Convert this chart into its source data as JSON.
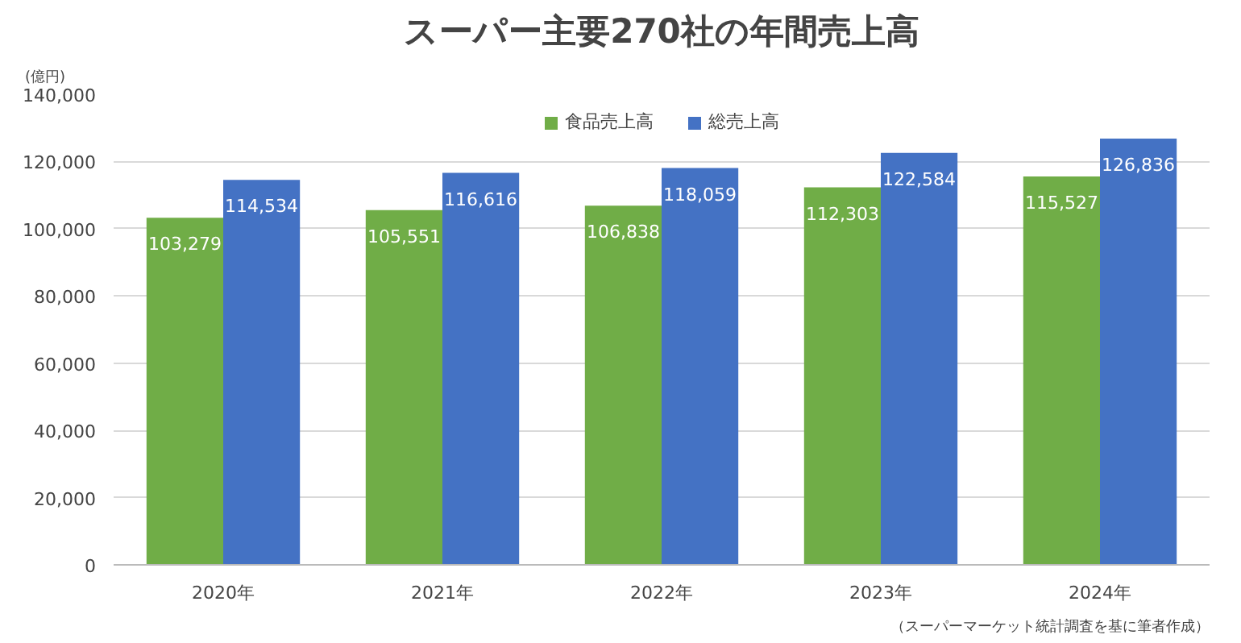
{
  "chart_data": {
    "type": "bar",
    "title": "スーパー主要270社の年間売上高",
    "ylabel": "(億円)",
    "categories": [
      "2020年",
      "2021年",
      "2022年",
      "2023年",
      "2024年"
    ],
    "series": [
      {
        "name": "食品売上高",
        "color": "#70ad47",
        "values": [
          103279,
          105551,
          106838,
          112303,
          115527
        ],
        "value_labels": [
          "103,279",
          "105,551",
          "106,838",
          "112,303",
          "115,527"
        ]
      },
      {
        "name": "総売上高",
        "color": "#4472c4",
        "values": [
          114534,
          116616,
          118059,
          122584,
          126836
        ],
        "value_labels": [
          "114,534",
          "116,616",
          "118,059",
          "122,584",
          "126,836"
        ]
      }
    ],
    "ylim": [
      0,
      140000
    ],
    "yticks": [
      0,
      {
        "value": 20000,
        "label": "20,000"
      },
      {
        "value": 40000,
        "label": "40,000"
      },
      {
        "value": 60000,
        "label": "60,000"
      },
      {
        "value": 80000,
        "label": "80,000"
      },
      {
        "value": 100000,
        "label": "100,000"
      },
      {
        "value": 120000,
        "label": "120,000"
      },
      {
        "value": 140000,
        "label": "140,000"
      }
    ],
    "grid": "y",
    "legend": "top",
    "annotations": [
      "（スーパーマーケット統計調査を基に筆者作成）"
    ]
  }
}
